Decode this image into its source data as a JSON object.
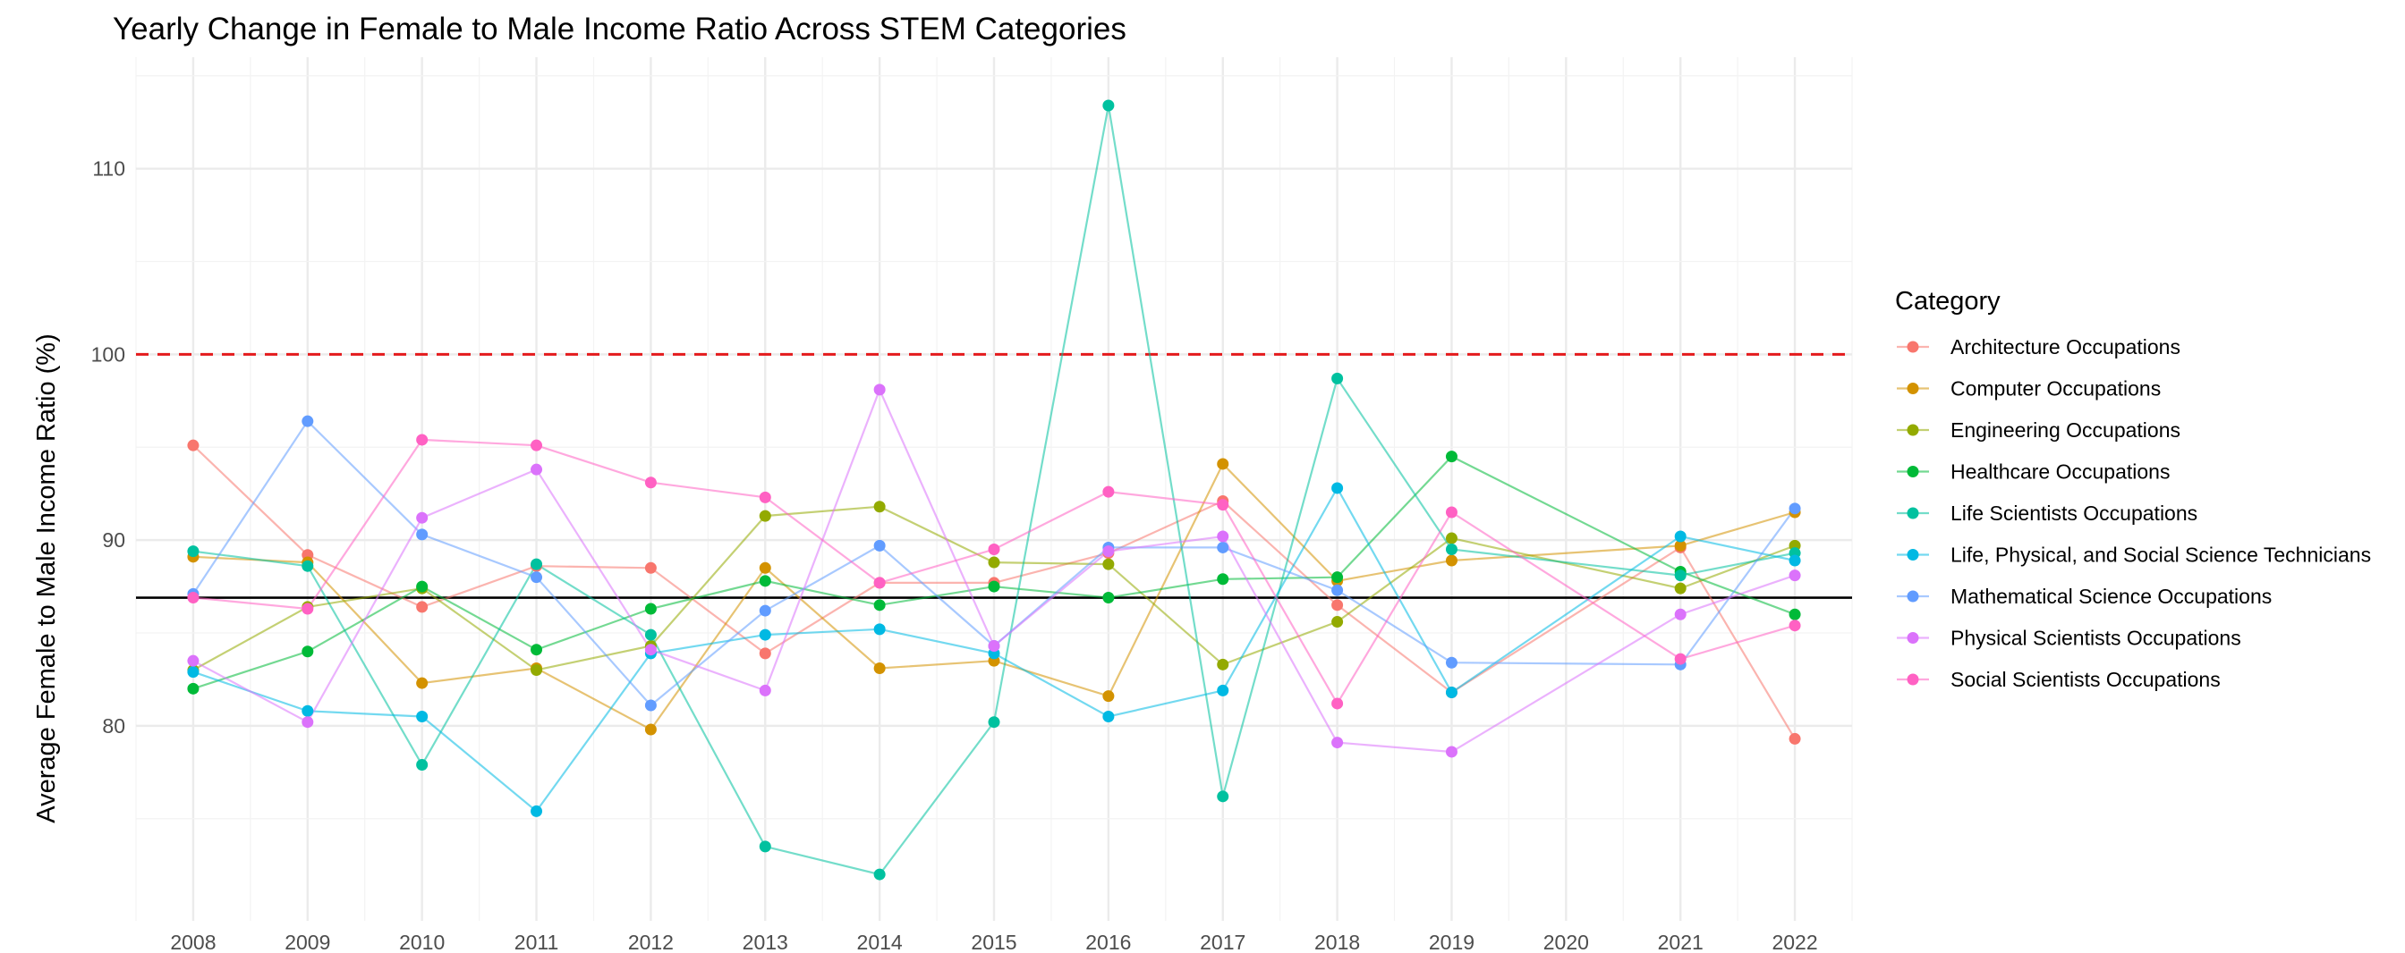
{
  "chart_data": {
    "type": "line",
    "title": "Yearly Change in Female to Male Income Ratio Across STEM Categories",
    "xlabel": "",
    "ylabel": "Average Female to Male Income Ratio (%)",
    "x": [
      2008,
      2009,
      2010,
      2011,
      2012,
      2013,
      2014,
      2015,
      2016,
      2017,
      2018,
      2019,
      2020,
      2021,
      2022
    ],
    "x_tick_labels": [
      "2008",
      "2009",
      "2010",
      "2011",
      "2012",
      "2013",
      "2014",
      "2015",
      "2016",
      "2017",
      "2018",
      "2019",
      "2020",
      "2021",
      "2022"
    ],
    "xlim": [
      2007.5,
      2022.5
    ],
    "ylim": [
      69.5,
      116
    ],
    "y_ticks": [
      80,
      90,
      100,
      110
    ],
    "y_tick_labels": [
      "80",
      "90",
      "100",
      "110"
    ],
    "reference_lines": [
      {
        "y": 100,
        "style": "dashed",
        "color": "#e41a1c"
      },
      {
        "y": 86.9,
        "style": "solid",
        "color": "#000000"
      }
    ],
    "grid": true,
    "legend_position": "right",
    "legend_title": "Category",
    "series": [
      {
        "name": "Architecture Occupations",
        "color": "#F8766D",
        "values": [
          95.1,
          89.2,
          86.4,
          88.6,
          88.5,
          83.9,
          87.7,
          87.7,
          89.3,
          92.1,
          86.5,
          81.8,
          null,
          89.6,
          79.3
        ]
      },
      {
        "name": "Computer Occupations",
        "color": "#D39200",
        "values": [
          89.1,
          88.8,
          82.3,
          83.1,
          79.8,
          88.5,
          83.1,
          83.5,
          81.6,
          94.1,
          87.8,
          88.9,
          null,
          89.7,
          91.5
        ]
      },
      {
        "name": "Engineering Occupations",
        "color": "#93AA00",
        "values": [
          83.0,
          86.4,
          87.4,
          83.0,
          84.3,
          91.3,
          91.8,
          88.8,
          88.7,
          83.3,
          85.6,
          90.1,
          null,
          87.4,
          89.7
        ]
      },
      {
        "name": "Healthcare Occupations",
        "color": "#00BA38",
        "values": [
          82.0,
          84.0,
          87.5,
          84.1,
          86.3,
          87.8,
          86.5,
          87.5,
          86.9,
          87.9,
          88.0,
          94.5,
          null,
          88.3,
          86.0
        ]
      },
      {
        "name": "Life Scientists Occupations",
        "color": "#00C19F",
        "values": [
          89.4,
          88.6,
          77.9,
          88.7,
          84.9,
          73.5,
          72.0,
          80.2,
          113.4,
          76.2,
          98.7,
          89.5,
          null,
          88.1,
          89.3
        ]
      },
      {
        "name": "Life, Physical, and Social Science Technicians",
        "color": "#00B9E3",
        "values": [
          82.9,
          80.8,
          80.5,
          75.4,
          83.9,
          84.9,
          85.2,
          83.9,
          80.5,
          81.9,
          92.8,
          81.8,
          null,
          90.2,
          88.9
        ]
      },
      {
        "name": "Mathematical Science Occupations",
        "color": "#619CFF",
        "values": [
          87.1,
          96.4,
          90.3,
          88.0,
          81.1,
          86.2,
          89.7,
          84.3,
          89.6,
          89.6,
          87.3,
          83.4,
          null,
          83.3,
          91.7
        ]
      },
      {
        "name": "Physical Scientists Occupations",
        "color": "#DB72FB",
        "values": [
          83.5,
          80.2,
          91.2,
          93.8,
          84.1,
          81.9,
          98.1,
          84.3,
          89.4,
          90.2,
          79.1,
          78.6,
          null,
          86.0,
          88.1
        ]
      },
      {
        "name": "Social Scientists Occupations",
        "color": "#FF61C3",
        "values": [
          86.9,
          86.3,
          95.4,
          95.1,
          93.1,
          92.3,
          87.7,
          89.5,
          92.6,
          91.9,
          81.2,
          91.5,
          null,
          83.6,
          85.4
        ]
      }
    ]
  }
}
